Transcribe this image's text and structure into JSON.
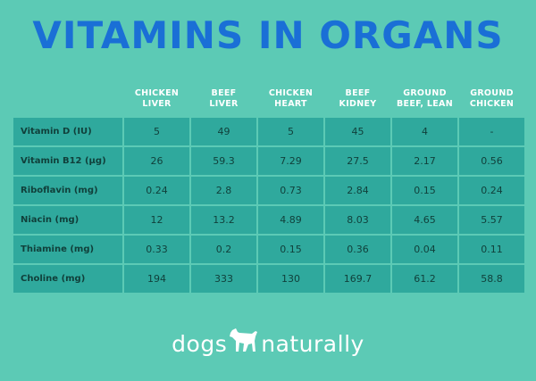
{
  "title": "VITAMINS IN ORGANS",
  "columns": [
    {
      "line1": "CHICKEN",
      "line2": "LIVER"
    },
    {
      "line1": "BEEF",
      "line2": "LIVER"
    },
    {
      "line1": "CHICKEN",
      "line2": "HEART"
    },
    {
      "line1": "BEEF",
      "line2": "KIDNEY"
    },
    {
      "line1": "GROUND",
      "line2": "BEEF, LEAN"
    },
    {
      "line1": "GROUND",
      "line2": "CHICKEN"
    }
  ],
  "rows": [
    {
      "label": "Vitamin D (IU)",
      "values": [
        "5",
        "49",
        "5",
        "45",
        "4",
        "-"
      ]
    },
    {
      "label": "Vitamin B12 (µg)",
      "values": [
        "26",
        "59.3",
        "7.29",
        "27.5",
        "2.17",
        "0.56"
      ]
    },
    {
      "label": "Riboflavin (mg)",
      "values": [
        "0.24",
        "2.8",
        "0.73",
        "2.84",
        "0.15",
        "0.24"
      ]
    },
    {
      "label": "Niacin (mg)",
      "values": [
        "12",
        "13.2",
        "4.89",
        "8.03",
        "4.65",
        "5.57"
      ]
    },
    {
      "label": "Thiamine (mg)",
      "values": [
        "0.33",
        "0.2",
        "0.15",
        "0.36",
        "0.04",
        "0.11"
      ]
    },
    {
      "label": "Choline (mg)",
      "values": [
        "194",
        "333",
        "130",
        "169.7",
        "61.2",
        "58.8"
      ]
    }
  ],
  "logo": {
    "left": "dogs",
    "right": "naturally",
    "icon": "dog-silhouette-icon"
  },
  "colors": {
    "background": "#5ccab5",
    "title": "#1a6fd6",
    "cell": "#2fa99d",
    "header_text": "#ffffff",
    "cell_text": "#103f3a"
  }
}
